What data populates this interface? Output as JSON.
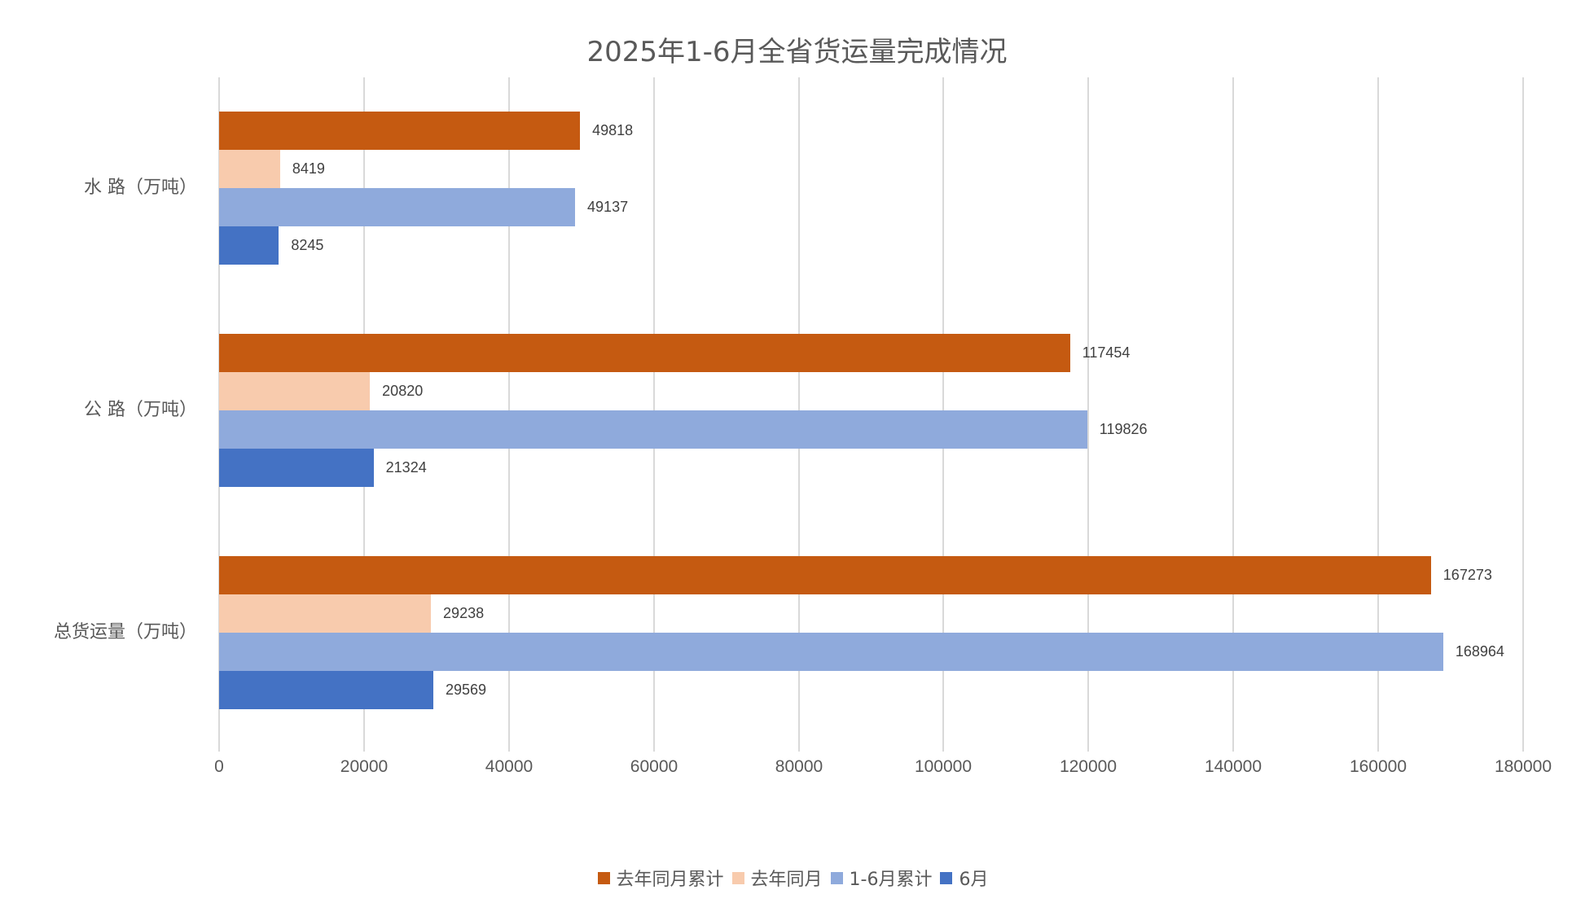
{
  "chart_data": {
    "type": "bar",
    "orientation": "horizontal",
    "title": "2025年1-6月全省货运量完成情况",
    "xlabel": "",
    "ylabel": "",
    "xlim": [
      0,
      180000
    ],
    "xticks": [
      "0",
      "20000",
      "40000",
      "60000",
      "80000",
      "100000",
      "120000",
      "140000",
      "160000",
      "180000"
    ],
    "grid": true,
    "legend_position": "bottom",
    "categories": [
      "水 路（万吨）",
      "公 路（万吨）",
      "总货运量（万吨）"
    ],
    "series": [
      {
        "name": "去年同月累计",
        "color": "#C55A11",
        "values": [
          49818,
          117454,
          167273
        ]
      },
      {
        "name": "去年同月",
        "color": "#F8CBAD",
        "values": [
          8419,
          20820,
          29238
        ]
      },
      {
        "name": "1-6月累计",
        "color": "#8FAADC",
        "values": [
          49137,
          119826,
          168964
        ]
      },
      {
        "name": "6月",
        "color": "#4472C4",
        "values": [
          8245,
          21324,
          29569
        ]
      }
    ],
    "data_labels": true
  },
  "labels": {
    "title": "2025年1-6月全省货运量完成情况",
    "categories": [
      "水 路（万吨）",
      "公 路（万吨）",
      "总货运量（万吨）"
    ],
    "xticks": [
      "0",
      "20000",
      "40000",
      "60000",
      "80000",
      "100000",
      "120000",
      "140000",
      "160000",
      "180000"
    ],
    "legend": [
      "去年同月累计",
      "去年同月",
      "1-6月累计",
      "6月"
    ],
    "values": {
      "water": [
        "49818",
        "8419",
        "49137",
        "8245"
      ],
      "road": [
        "117454",
        "20820",
        "119826",
        "21324"
      ],
      "total": [
        "167273",
        "29238",
        "168964",
        "29569"
      ]
    }
  },
  "colors": {
    "series": [
      "#C55A11",
      "#F8CBAD",
      "#8FAADC",
      "#4472C4"
    ],
    "gridline": "#D9D9D9",
    "text": "#595959"
  }
}
